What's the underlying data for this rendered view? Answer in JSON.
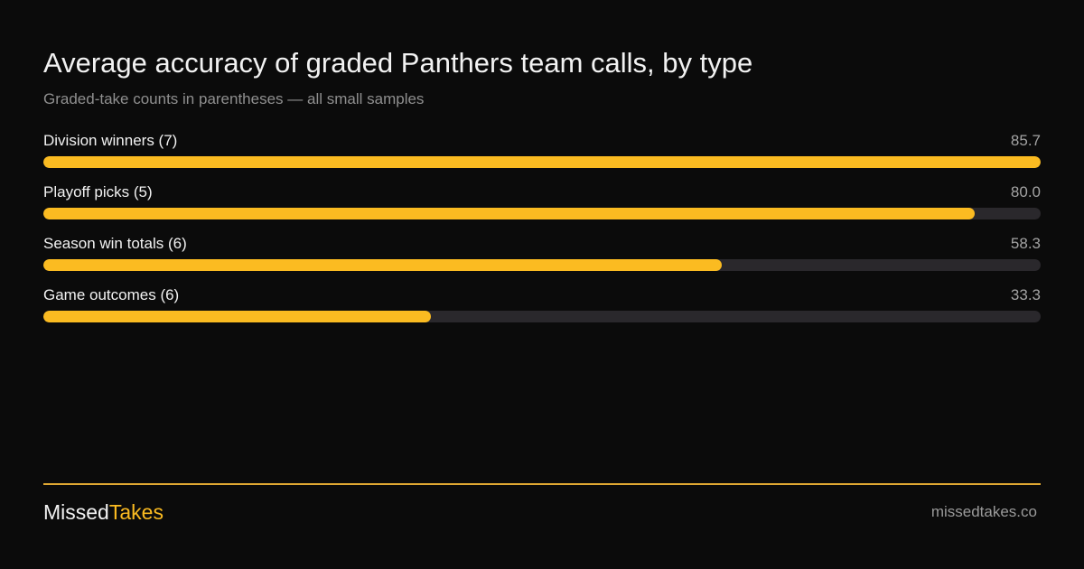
{
  "header": {
    "title": "Average accuracy of graded Panthers team calls, by type",
    "subtitle": "Graded-take counts in parentheses — all small samples"
  },
  "chart_data": {
    "type": "bar",
    "orientation": "horizontal",
    "title": "Average accuracy of graded Panthers team calls, by type",
    "subtitle": "Graded-take counts in parentheses — all small samples",
    "categories": [
      "Division winners (7)",
      "Playoff picks (5)",
      "Season win totals (6)",
      "Game outcomes (6)"
    ],
    "values": [
      85.7,
      80.0,
      58.3,
      33.3
    ],
    "value_labels": [
      "85.7",
      "80.0",
      "58.3",
      "33.3"
    ],
    "xlim": [
      0,
      85.7
    ],
    "grid": false,
    "legend": "none",
    "colors": {
      "bar": "#fbbb21",
      "track": "#2a282c"
    }
  },
  "footer": {
    "brand_part1": "Missed",
    "brand_part2": "Takes",
    "site": "missedtakes.co"
  },
  "colors": {
    "background": "#0b0b0b",
    "accent": "#fbbb21",
    "divider": "#e0a833"
  }
}
